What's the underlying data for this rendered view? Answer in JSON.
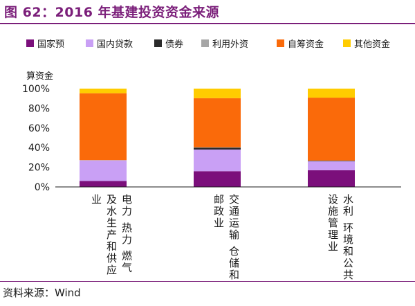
{
  "title": "图 62：2016 年基建投资资金来源",
  "source": "资料来源：Wind",
  "chart_data": {
    "type": "bar",
    "stacked": true,
    "ylabel": "算资金",
    "ylim": [
      0,
      100
    ],
    "yticks": [
      "0%",
      "20%",
      "40%",
      "60%",
      "80%",
      "100%"
    ],
    "grid": false,
    "legend_position": "top",
    "categories": [
      "电力、热力、燃气及水生产和供应业",
      "交通运输、仓储和邮政业",
      "水利、环境和公共设施管理业"
    ],
    "category_labels_visible": [
      "电力 热力 燃气及水生产和供应业",
      "交通运输 仓储和邮政业",
      "水利 环境和公共设施管理业"
    ],
    "series": [
      {
        "name": "国家预",
        "color": "#7b0f7b",
        "values": [
          6,
          16,
          17
        ]
      },
      {
        "name": "国内贷款",
        "color": "#c9a0f5",
        "values": [
          21,
          22,
          9
        ]
      },
      {
        "name": "债券",
        "color": "#2b2b2b",
        "values": [
          0,
          2,
          0.5
        ]
      },
      {
        "name": "利用外资",
        "color": "#a6a6a6",
        "values": [
          0.3,
          0.3,
          0.3
        ]
      },
      {
        "name": "自筹资金",
        "color": "#fa6a0a",
        "values": [
          68,
          50,
          64
        ]
      },
      {
        "name": "其他资金",
        "color": "#ffcc00",
        "values": [
          4.7,
          9.7,
          9.2
        ]
      }
    ]
  }
}
